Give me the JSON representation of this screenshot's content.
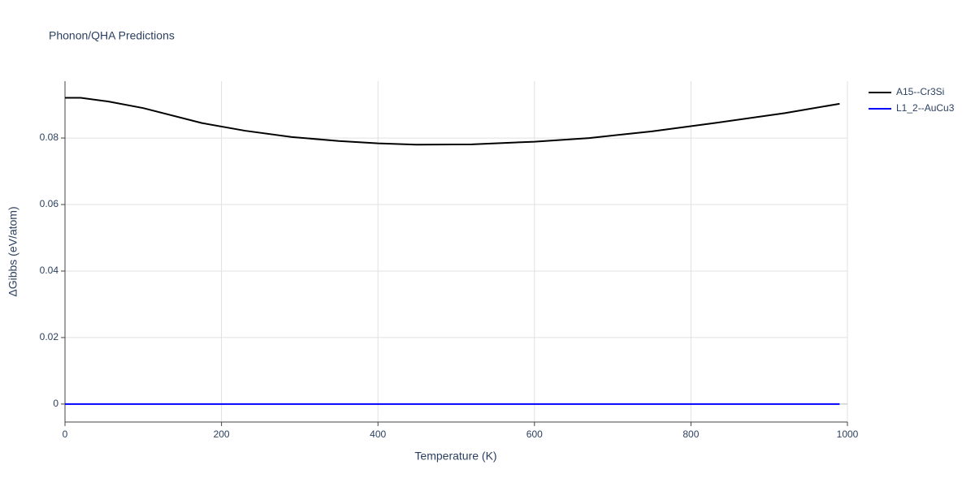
{
  "chart_data": {
    "type": "line",
    "title": "Phonon/QHA Predictions",
    "x_label": "Temperature (K)",
    "y_label": "ΔGibbs (eV/atom)",
    "x": [
      0,
      20,
      55,
      100,
      175,
      230,
      290,
      350,
      400,
      450,
      520,
      600,
      670,
      750,
      830,
      920,
      990
    ],
    "series": [
      {
        "name": "A15--Cr3Si",
        "color": "#000000",
        "values": [
          0.0921,
          0.0921,
          0.091,
          0.089,
          0.0845,
          0.0822,
          0.0803,
          0.0791,
          0.0784,
          0.078,
          0.0781,
          0.0789,
          0.08,
          0.082,
          0.0845,
          0.0875,
          0.0903
        ]
      },
      {
        "name": "L1_2--AuCu3",
        "color": "#0000ff",
        "values": [
          0,
          0,
          0,
          0,
          0,
          0,
          0,
          0,
          0,
          0,
          0,
          0,
          0,
          0,
          0,
          0,
          0
        ]
      }
    ],
    "xlim": [
      0,
      1000
    ],
    "xticks": [
      0,
      200,
      400,
      600,
      800,
      1000
    ],
    "ylim": [
      -0.0054,
      0.0971
    ],
    "yticks": [
      0,
      0.02,
      0.04,
      0.06,
      0.08
    ],
    "grid": true,
    "legend": "right"
  }
}
